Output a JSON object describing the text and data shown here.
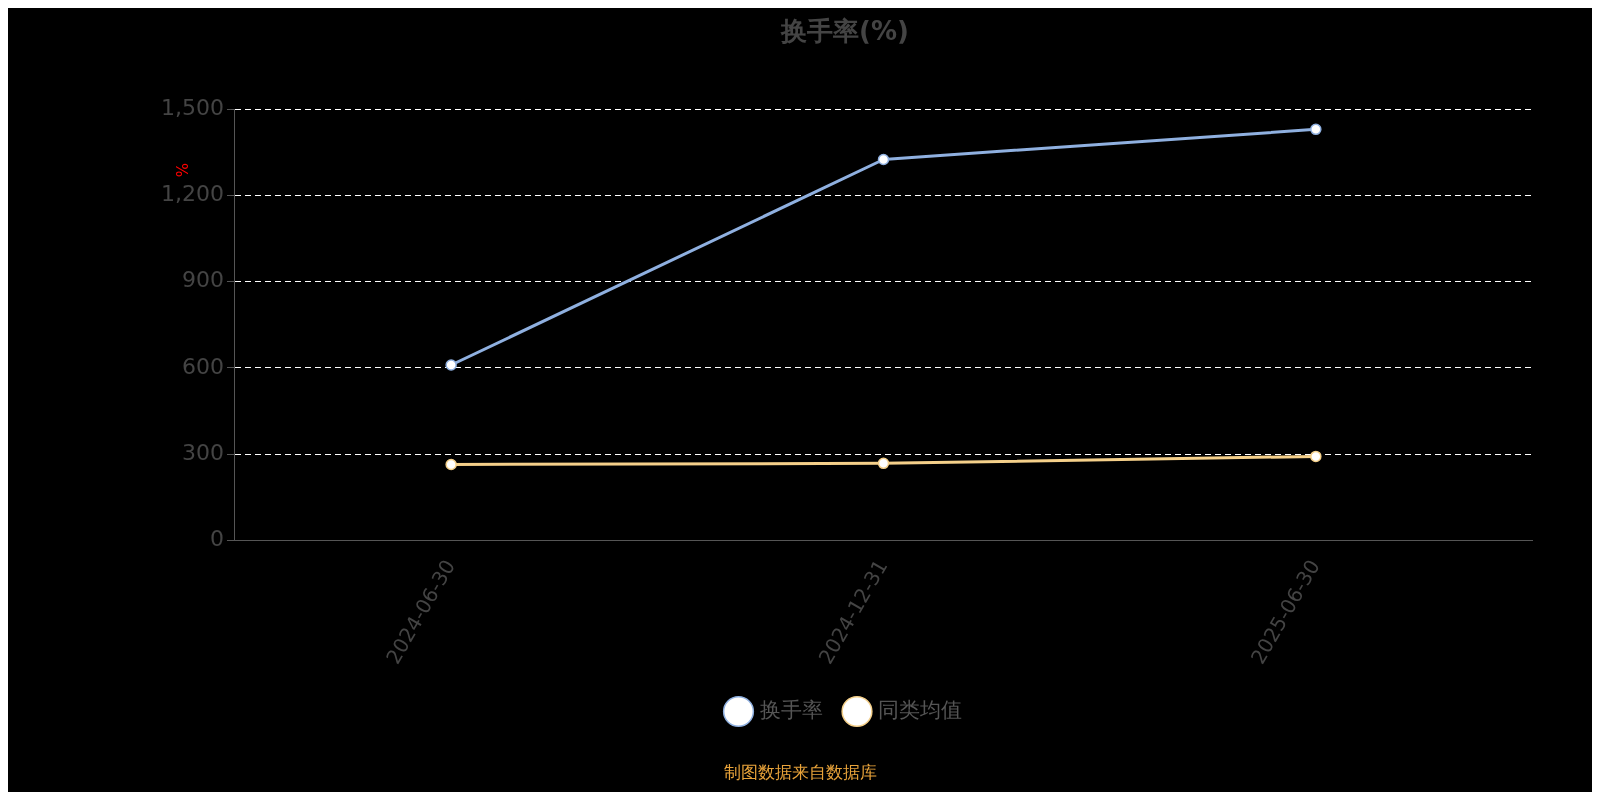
{
  "chart_data": {
    "type": "line",
    "title": "换手率(%)",
    "ylabel": "%",
    "categories": [
      "2024-06-30",
      "2024-12-31",
      "2025-06-30"
    ],
    "series": [
      {
        "name": "换手率",
        "color": "#8fb0e0",
        "values": [
          610,
          1325,
          1430
        ]
      },
      {
        "name": "同类均值",
        "color": "#f5d08a",
        "values": [
          264,
          268,
          292
        ]
      }
    ],
    "ylim": [
      0,
      1500
    ],
    "yticks": [
      0,
      300,
      600,
      900,
      {
        "value": 1200,
        "label": "1,200"
      },
      {
        "value": 1500,
        "label": "1,500"
      }
    ],
    "grid": "y",
    "legend": "bottom",
    "marker": "circle",
    "line_style": "solid",
    "annotations": [
      "制图数据来自数据库"
    ]
  }
}
